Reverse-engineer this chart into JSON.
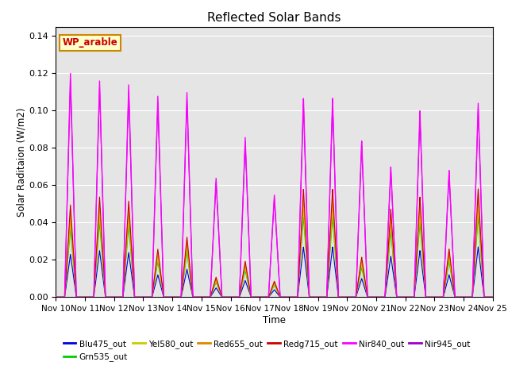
{
  "title": "Reflected Solar Bands",
  "xlabel": "Time",
  "ylabel": "Solar Raditaion (W/m2)",
  "annotation": "WP_arable",
  "ylim": [
    0,
    0.145
  ],
  "xtick_labels": [
    "Nov 10",
    "Nov 11",
    "Nov 12",
    "Nov 13",
    "Nov 14",
    "Nov 15",
    "Nov 16",
    "Nov 17",
    "Nov 18",
    "Nov 19",
    "Nov 20",
    "Nov 21",
    "Nov 22",
    "Nov 23",
    "Nov 24",
    "Nov 25"
  ],
  "legend_colors": {
    "Blu475_out": "#0000dd",
    "Grn535_out": "#00cc00",
    "Yel580_out": "#cccc00",
    "Red655_out": "#dd8800",
    "Redg715_out": "#cc0000",
    "Nir840_out": "#ff00ff",
    "Nir945_out": "#9900cc"
  },
  "background_color": "#e5e5e5",
  "fig_background": "#ffffff",
  "annotation_box_facecolor": "#ffffcc",
  "annotation_box_edgecolor": "#cc8800",
  "annotation_text_color": "#cc0000",
  "grid_color": "#ffffff",
  "peak_heights_nir840": [
    0.12,
    0.116,
    0.114,
    0.108,
    0.11,
    0.064,
    0.086,
    0.055,
    0.107,
    0.107,
    0.084,
    0.07,
    0.1,
    0.068,
    0.104
  ],
  "peak_heights_blue": [
    0.023,
    0.025,
    0.024,
    0.012,
    0.015,
    0.005,
    0.009,
    0.004,
    0.027,
    0.027,
    0.01,
    0.022,
    0.025,
    0.012,
    0.027
  ]
}
